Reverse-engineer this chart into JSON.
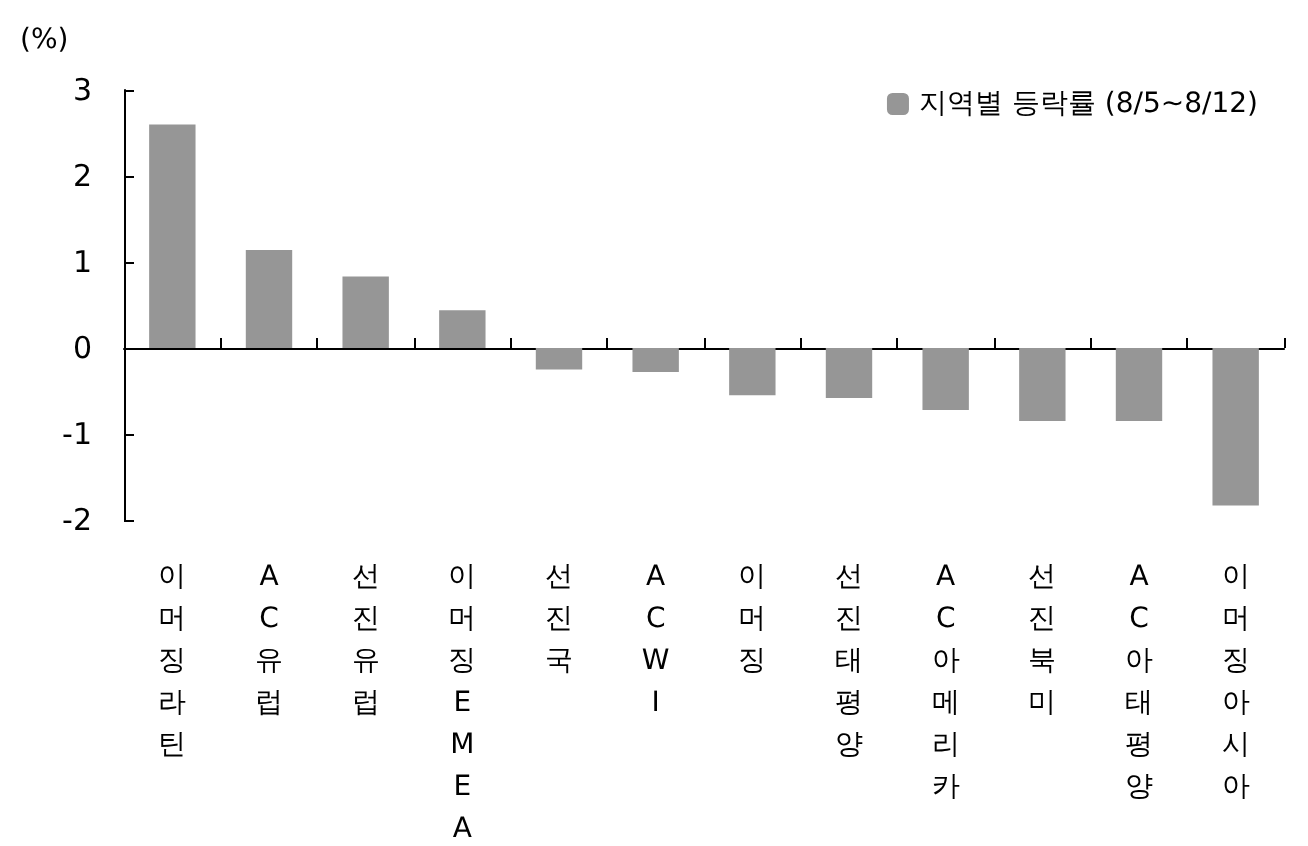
{
  "chart_data": {
    "type": "bar",
    "ylabel": "(%)",
    "categories": [
      "이머징라틴",
      "AC유럽",
      "선진유럽",
      "이머징EMEA",
      "선진국",
      "ACWI",
      "이머징",
      "선진태평양",
      "AC아메리카",
      "선진북미",
      "AC아태평양",
      "이머징아시아"
    ],
    "series": [
      {
        "name": "지역별 등락률 (8/5~8/12)",
        "color": "#969696",
        "values": [
          2.6,
          1.14,
          0.83,
          0.44,
          -0.25,
          -0.28,
          -0.55,
          -0.58,
          -0.72,
          -0.85,
          -0.85,
          -1.83
        ]
      }
    ],
    "ylim": [
      -2,
      3
    ],
    "yticks": [
      -2,
      -1,
      0,
      1,
      2,
      3
    ],
    "legend": "top right"
  }
}
